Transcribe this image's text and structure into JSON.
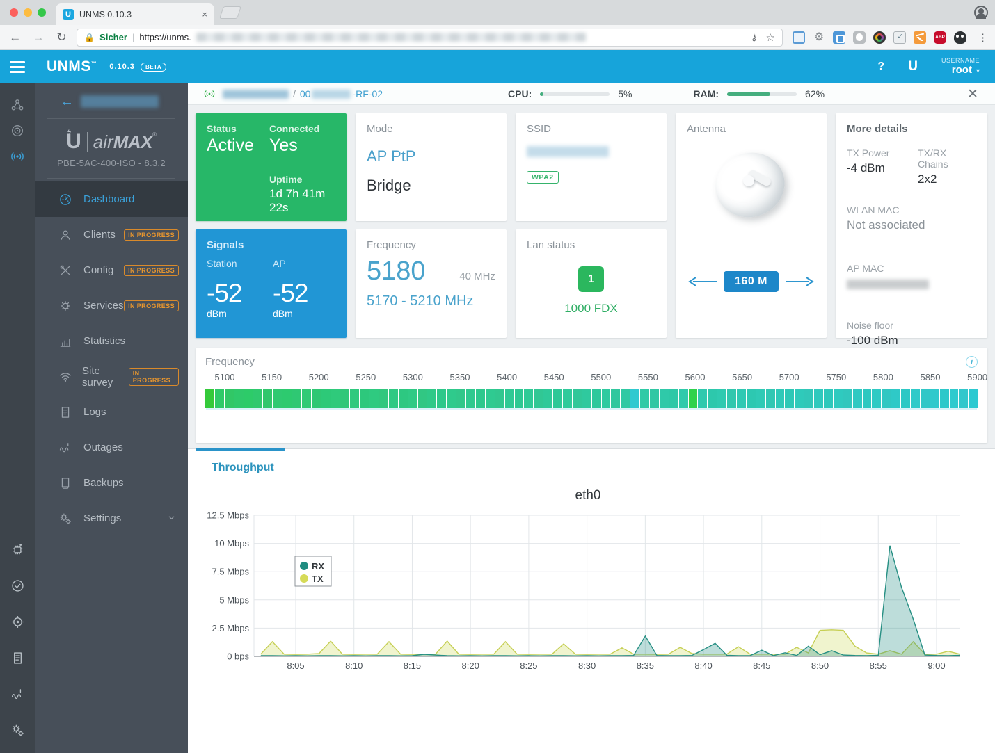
{
  "browser": {
    "tab_title": "UNMS 0.10.3",
    "favicon_letter": "U",
    "tab_close": "×",
    "back": "←",
    "forward": "→",
    "reload": "↻",
    "security_label": "Sicher",
    "url_visible": "https://unms.",
    "key_icon": "⚷",
    "star_icon": "☆",
    "menu_dots": "⋮",
    "extension_icons": [
      "window-icon",
      "gear-icon",
      "tag-icon",
      "camera-icon",
      "lens-icon",
      "mail-check-icon",
      "chart-icon",
      "abp-icon",
      "ghost-icon"
    ],
    "abp_text": "ABP"
  },
  "navbar": {
    "brand": "UNMS",
    "version": "0.10.3",
    "beta_badge": "BETA",
    "help_label": "?",
    "ubnt_logo": "U",
    "username_label": "USERNAME",
    "username": "root",
    "user_chevron": "▼"
  },
  "sidebar": {
    "back_arrow": "←",
    "logo_air": "air",
    "logo_max": "MAX",
    "logo_reg": "®",
    "device_model": "PBE-5AC-400-ISO - 8.3.2",
    "rail_top_icons": [
      "sitemap",
      "target",
      "radio"
    ],
    "rail_bottom_icons": [
      "chip",
      "check",
      "crosshair",
      "doc",
      "wave",
      "gears"
    ],
    "items": [
      {
        "label": "Dashboard",
        "icon": "gauge",
        "active": true,
        "badge": "",
        "chevron": false
      },
      {
        "label": "Clients",
        "icon": "person",
        "active": false,
        "badge": "IN PROGRESS",
        "chevron": false
      },
      {
        "label": "Config",
        "icon": "tools",
        "active": false,
        "badge": "IN PROGRESS",
        "chevron": false
      },
      {
        "label": "Services",
        "icon": "gear",
        "active": false,
        "badge": "IN PROGRESS",
        "chevron": false
      },
      {
        "label": "Statistics",
        "icon": "bars",
        "active": false,
        "badge": "",
        "chevron": false
      },
      {
        "label": "Site survey",
        "icon": "wifi",
        "active": false,
        "badge": "IN PROGRESS",
        "chevron": false
      },
      {
        "label": "Logs",
        "icon": "doc",
        "active": false,
        "badge": "",
        "chevron": false
      },
      {
        "label": "Outages",
        "icon": "wave",
        "active": false,
        "badge": "",
        "chevron": false
      },
      {
        "label": "Backups",
        "icon": "drive",
        "active": false,
        "badge": "",
        "chevron": false
      },
      {
        "label": "Settings",
        "icon": "gears",
        "active": false,
        "badge": "",
        "chevron": true
      }
    ]
  },
  "device_header": {
    "crumb_sep": "/",
    "crumb_prefix": "00",
    "crumb_suffix": "-RF-02",
    "cpu_label": "CPU:",
    "cpu_percent": 5,
    "cpu_text": "5%",
    "ram_label": "RAM:",
    "ram_percent": 62,
    "ram_text": "62%",
    "close": "✕",
    "meter_color": "#45ae7e"
  },
  "cards": {
    "status": {
      "title": "Status",
      "value": "Active",
      "connected_label": "Connected",
      "connected_value": "Yes",
      "uptime_label": "Uptime",
      "uptime_value": "1d 7h 41m 22s",
      "bg": "#27b768"
    },
    "signals": {
      "title": "Signals",
      "station_label": "Station",
      "station_value": "-52",
      "ap_label": "AP",
      "ap_value": "-52",
      "unit": "dBm",
      "bg": "#2196d5"
    },
    "mode": {
      "title": "Mode",
      "primary": "AP PtP",
      "secondary": "Bridge"
    },
    "frequency": {
      "title": "Frequency",
      "value": "5180",
      "bandwidth": "40 MHz",
      "range": "5170 - 5210 MHz"
    },
    "ssid": {
      "title": "SSID",
      "security_badge": "WPA2"
    },
    "lan": {
      "title": "Lan status",
      "port_number": "1",
      "speed": "1000 FDX"
    },
    "antenna": {
      "title": "Antenna",
      "distance": "160 M"
    },
    "more": {
      "title": "More details",
      "tx_power_label": "TX Power",
      "tx_power": "-4 dBm",
      "chains_label": "TX/RX Chains",
      "chains": "2x2",
      "wlan_mac_label": "WLAN MAC",
      "wlan_mac": "Not associated",
      "ap_mac_label": "AP MAC",
      "noise_label": "Noise floor",
      "noise": "-100 dBm"
    }
  },
  "spectrum": {
    "title": "Frequency",
    "info_icon": "i",
    "ticks": [
      5100,
      5150,
      5200,
      5250,
      5300,
      5350,
      5400,
      5450,
      5500,
      5550,
      5600,
      5650,
      5700,
      5750,
      5800,
      5850,
      5900
    ],
    "segment_colors": [
      "#34ca3a",
      "#2fca68",
      "#31c766",
      "#2fc96b",
      "#2dcb69",
      "#2fc96e",
      "#31c66c",
      "#2fc971",
      "#2dca6f",
      "#2fc873",
      "#31ca76",
      "#2fc774",
      "#2dc978",
      "#2fca7b",
      "#31c779",
      "#2fc97e",
      "#2dc87c",
      "#2fca80",
      "#31c77e",
      "#2fc983",
      "#2dc881",
      "#2fca85",
      "#31c783",
      "#2fc988",
      "#2dc88a",
      "#2fca8c",
      "#31c78a",
      "#2fc98f",
      "#2dc88d",
      "#2fca91",
      "#31c78f",
      "#2fc994",
      "#2dc892",
      "#2fca96",
      "#31c794",
      "#2fc999",
      "#2dc897",
      "#2fca9b",
      "#31c799",
      "#2fc99e",
      "#2dc89c",
      "#2fcaa0",
      "#31c79e",
      "#2fc9a3",
      "#2fc9d0",
      "#2fcaa6",
      "#31c7a4",
      "#2fc9a9",
      "#2dc8a7",
      "#2fcaab",
      "#2fd24c",
      "#2fc9ae",
      "#2dc8ac",
      "#2fcab0",
      "#31c7ae",
      "#2fc9b3",
      "#2dc8b1",
      "#2fcab5",
      "#31c7b3",
      "#2fc9b8",
      "#2dc8b6",
      "#2fcaba",
      "#31c7b8",
      "#2fc9bd",
      "#2dc8bb",
      "#2fcabf",
      "#31c7bd",
      "#2fc9c2",
      "#2dc8c0",
      "#2fcac4",
      "#31c7c2",
      "#2fc9c7",
      "#2dc8c5",
      "#2fcac9",
      "#31c7c7",
      "#2fc9cc",
      "#2dc8ca",
      "#2fcace",
      "#31c7cc",
      "#2bc9d1"
    ]
  },
  "tabs": {
    "active_tab": "Throughput"
  },
  "chart_data": {
    "type": "line",
    "title": "eth0",
    "ylim": [
      0,
      12.5
    ],
    "grid": true,
    "legend_position": "upper-left-inside",
    "y_tick_values": [
      0,
      2.5,
      5,
      7.5,
      10,
      12.5
    ],
    "y_tick_labels": [
      "0 bps",
      "2.5 Mbps",
      "5 Mbps",
      "7.5 Mbps",
      "10 Mbps",
      "12.5 Mbps"
    ],
    "x_tick_minutes": [
      5,
      10,
      15,
      20,
      25,
      30,
      35,
      40,
      45,
      50,
      55,
      60
    ],
    "x_tick_labels": [
      "8:05",
      "8:10",
      "8:15",
      "8:20",
      "8:25",
      "8:30",
      "8:35",
      "8:40",
      "8:45",
      "8:50",
      "8:55",
      "9:00"
    ],
    "x_start_minute": 2,
    "x_step_minutes": 1,
    "unit": "Mbps",
    "series": [
      {
        "name": "RX",
        "dot": "#1f8c80",
        "color": "#268f83",
        "fill": "rgba(38,143,131,0.30)",
        "values": [
          0.06,
          0.06,
          0.05,
          0.06,
          0.05,
          0.06,
          0.06,
          0.05,
          0.06,
          0.05,
          0.06,
          0.06,
          0.05,
          0.06,
          0.18,
          0.12,
          0.06,
          0.05,
          0.06,
          0.05,
          0.06,
          0.06,
          0.05,
          0.06,
          0.05,
          0.06,
          0.06,
          0.05,
          0.06,
          0.05,
          0.06,
          0.06,
          0.08,
          1.8,
          0.08,
          0.06,
          0.06,
          0.08,
          0.6,
          1.15,
          0.1,
          0.07,
          0.07,
          0.55,
          0.07,
          0.32,
          0.08,
          0.9,
          0.15,
          0.5,
          0.12,
          0.08,
          0.07,
          0.1,
          9.8,
          6.1,
          3.3,
          0.12,
          0.08,
          0.07,
          0.1
        ]
      },
      {
        "name": "TX",
        "dot": "#d6db58",
        "color": "#c6cf54",
        "fill": "rgba(228,235,165,0.55)",
        "values": [
          0.2,
          1.3,
          0.2,
          0.18,
          0.2,
          0.25,
          1.35,
          0.2,
          0.18,
          0.2,
          0.2,
          1.3,
          0.2,
          0.18,
          0.2,
          0.2,
          1.35,
          0.2,
          0.18,
          0.2,
          0.2,
          1.3,
          0.2,
          0.18,
          0.2,
          0.2,
          1.1,
          0.2,
          0.18,
          0.2,
          0.2,
          0.75,
          0.2,
          0.2,
          0.18,
          0.2,
          0.8,
          0.25,
          0.2,
          0.2,
          0.2,
          0.85,
          0.2,
          0.2,
          0.2,
          0.2,
          0.8,
          0.3,
          2.3,
          2.35,
          2.3,
          0.9,
          0.3,
          0.2,
          0.5,
          0.2,
          1.3,
          0.2,
          0.2,
          0.45,
          0.2
        ]
      }
    ]
  }
}
